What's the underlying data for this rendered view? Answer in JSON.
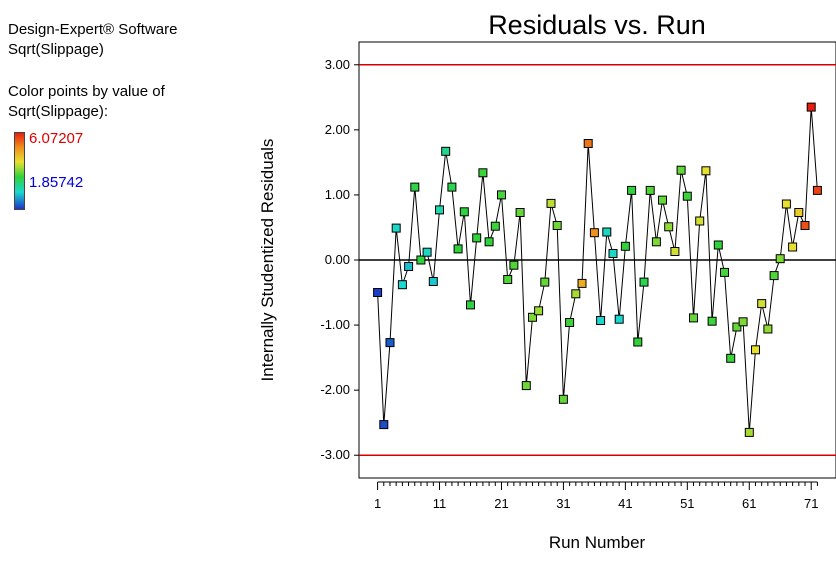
{
  "info": {
    "software": "Design-Expert® Software",
    "response": "Sqrt(Slippage)",
    "color_caption_1": "Color points by value of",
    "color_caption_2": "Sqrt(Slippage):",
    "legend_max": "6.07207",
    "legend_min": "1.85742"
  },
  "colors": {
    "low": "#1c34c8",
    "high": "#e81d10",
    "limit_line": "#d40000",
    "zero_line": "#000000"
  },
  "chart_data": {
    "type": "scatter",
    "title": "Residuals vs. Run",
    "xlabel": "Run Number",
    "ylabel": "Internally Studentized Residuals",
    "xlim": [
      -2,
      75
    ],
    "ylim": [
      -3.35,
      3.35
    ],
    "x_ticks": [
      1,
      11,
      21,
      31,
      41,
      51,
      61,
      71
    ],
    "x_tick_labels": [
      "1",
      "11",
      "21",
      "31",
      "41",
      "51",
      "61",
      "71"
    ],
    "y_ticks": [
      3.0,
      2.0,
      1.0,
      0.0,
      -1.0,
      -2.0,
      -3.0
    ],
    "y_tick_labels": [
      "3.00",
      "2.00",
      "1.00",
      "0.00",
      "-1.00",
      "-2.00",
      "-3.00"
    ],
    "limit_lines": [
      3.0,
      -3.0
    ],
    "zero_line": 0.0,
    "connect_points": true,
    "grid": false,
    "series": [
      {
        "x": [
          1,
          2,
          3,
          4,
          5,
          6,
          7,
          8,
          9,
          10,
          11,
          12,
          13,
          14,
          15,
          16,
          17,
          18,
          19,
          20,
          21,
          22,
          23,
          24,
          25,
          26,
          27,
          28,
          29,
          30,
          31,
          32,
          33,
          34,
          35,
          36,
          37,
          38,
          39,
          40,
          41,
          42,
          43,
          44,
          45,
          46,
          47,
          48,
          49,
          50,
          51,
          52,
          53,
          54,
          55,
          56,
          57,
          58,
          59,
          60,
          61,
          62,
          63,
          64,
          65,
          66,
          67,
          68,
          69,
          70,
          71,
          72
        ],
        "y": [
          -0.5,
          -2.53,
          -1.27,
          0.49,
          -0.38,
          -0.1,
          1.12,
          0.0,
          0.12,
          -0.33,
          0.77,
          1.67,
          1.12,
          0.17,
          0.74,
          -0.69,
          0.34,
          1.34,
          0.28,
          0.52,
          1.0,
          -0.3,
          -0.08,
          0.73,
          -1.93,
          -0.88,
          -0.78,
          -0.34,
          0.87,
          0.53,
          -2.14,
          -0.96,
          -0.52,
          -0.36,
          1.79,
          0.42,
          -0.93,
          0.43,
          0.1,
          -0.91,
          0.21,
          1.07,
          -1.26,
          -0.34,
          1.07,
          0.28,
          0.92,
          0.51,
          0.13,
          1.38,
          0.98,
          -0.89,
          0.6,
          1.37,
          -0.94,
          0.23,
          -0.19,
          -1.51,
          -1.03,
          -0.95,
          -2.65,
          -1.38,
          -0.67,
          -1.06,
          -0.24,
          0.02,
          0.86,
          0.2,
          0.73,
          0.53,
          2.35,
          1.07
        ],
        "color_value": [
          0.02,
          0.05,
          0.08,
          0.34,
          0.33,
          0.28,
          0.53,
          0.55,
          0.35,
          0.3,
          0.38,
          0.43,
          0.52,
          0.55,
          0.54,
          0.54,
          0.55,
          0.56,
          0.55,
          0.56,
          0.57,
          0.58,
          0.58,
          0.6,
          0.61,
          0.62,
          0.65,
          0.6,
          0.68,
          0.61,
          0.6,
          0.56,
          0.66,
          0.8,
          0.88,
          0.84,
          0.33,
          0.36,
          0.34,
          0.33,
          0.55,
          0.55,
          0.55,
          0.52,
          0.58,
          0.62,
          0.6,
          0.64,
          0.7,
          0.6,
          0.56,
          0.6,
          0.7,
          0.72,
          0.56,
          0.55,
          0.57,
          0.56,
          0.6,
          0.62,
          0.66,
          0.72,
          0.7,
          0.64,
          0.58,
          0.62,
          0.72,
          0.72,
          0.75,
          0.93,
          1.0,
          0.95
        ]
      }
    ]
  }
}
